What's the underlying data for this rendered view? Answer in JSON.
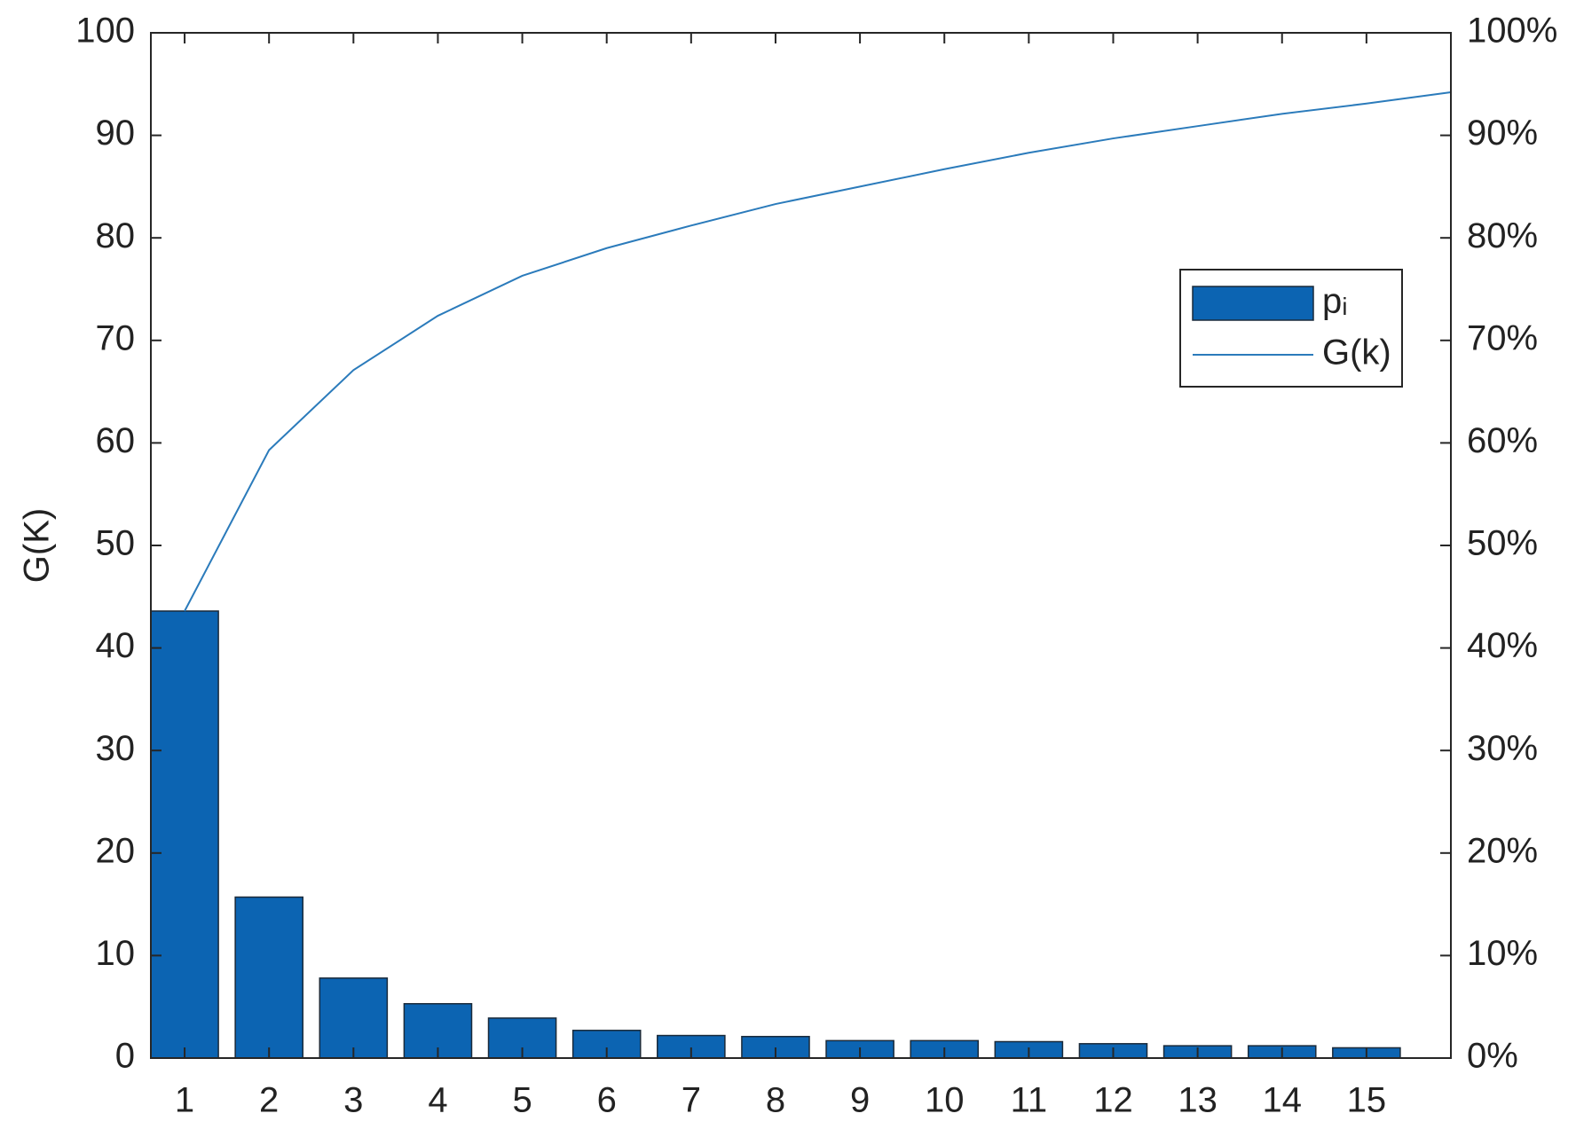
{
  "chart_data": {
    "type": "pareto",
    "ylabel": "G(K)",
    "xlim": [
      0.6,
      16
    ],
    "xticks": [
      1,
      2,
      3,
      4,
      5,
      6,
      7,
      8,
      9,
      10,
      11,
      12,
      13,
      14,
      15
    ],
    "ylim": [
      0,
      100
    ],
    "yticks": [
      0,
      10,
      20,
      30,
      40,
      50,
      60,
      70,
      80,
      90,
      100
    ],
    "y2lim": [
      0,
      100
    ],
    "y2ticks": [
      {
        "value": 0,
        "label": "0%"
      },
      {
        "value": 10,
        "label": "10%"
      },
      {
        "value": 20,
        "label": "20%"
      },
      {
        "value": 30,
        "label": "30%"
      },
      {
        "value": 40,
        "label": "40%"
      },
      {
        "value": 50,
        "label": "50%"
      },
      {
        "value": 60,
        "label": "60%"
      },
      {
        "value": 70,
        "label": "70%"
      },
      {
        "value": 80,
        "label": "80%"
      },
      {
        "value": 90,
        "label": "90%"
      },
      {
        "value": 100,
        "label": "100%"
      }
    ],
    "legend": "upper right",
    "series": [
      {
        "name": "pᵢ",
        "type": "bar",
        "color": "#0c64b2",
        "x": [
          1,
          2,
          3,
          4,
          5,
          6,
          7,
          8,
          9,
          10,
          11,
          12,
          13,
          14,
          15
        ],
        "values": [
          43.6,
          15.7,
          7.8,
          5.3,
          3.9,
          2.7,
          2.2,
          2.1,
          1.7,
          1.7,
          1.6,
          1.4,
          1.2,
          1.2,
          1.0
        ]
      },
      {
        "name": "G(k)",
        "type": "line",
        "color": "#2b7bbb",
        "x": [
          1,
          2,
          3,
          4,
          5,
          6,
          7,
          8,
          9,
          10,
          11,
          12,
          13,
          14,
          15,
          16
        ],
        "values": [
          43.6,
          59.3,
          67.1,
          72.4,
          76.3,
          79.0,
          81.2,
          83.3,
          85.0,
          86.7,
          88.3,
          89.7,
          90.9,
          92.1,
          93.1,
          94.2
        ]
      }
    ]
  }
}
